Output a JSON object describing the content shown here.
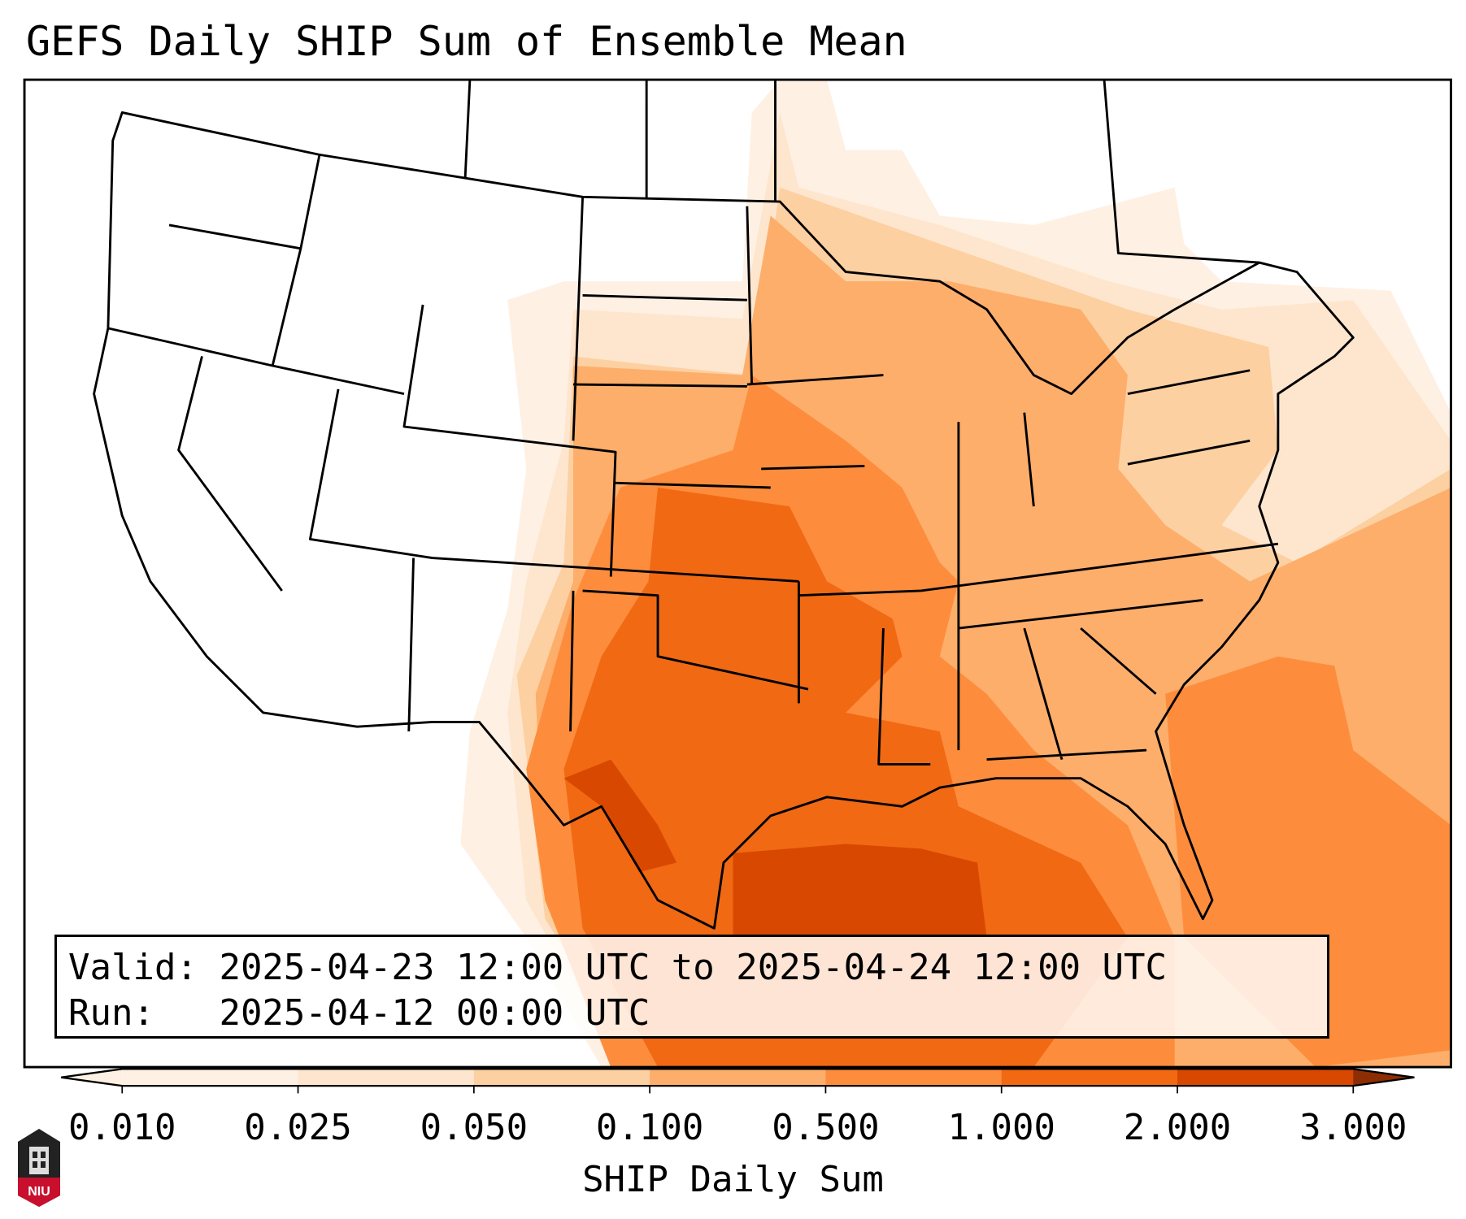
{
  "title": "GEFS Daily SHIP Sum of Ensemble Mean",
  "info": {
    "valid_label": "Valid:",
    "valid_value": "2025-04-23 12:00 UTC to 2025-04-24 12:00 UTC",
    "run_label": "Run:",
    "run_value": "2025-04-12 00:00 UTC"
  },
  "colorbar": {
    "label": "SHIP Daily Sum",
    "ticks": [
      "0.010",
      "0.025",
      "0.050",
      "0.100",
      "0.500",
      "1.000",
      "2.000",
      "3.000"
    ],
    "colors": [
      "#fff0e4",
      "#fee6ce",
      "#fdd0a2",
      "#fdae6b",
      "#fd8d3c",
      "#f16913",
      "#d94801",
      "#8c2d04"
    ],
    "extend": "both"
  },
  "logo": {
    "text": "NIU"
  }
}
